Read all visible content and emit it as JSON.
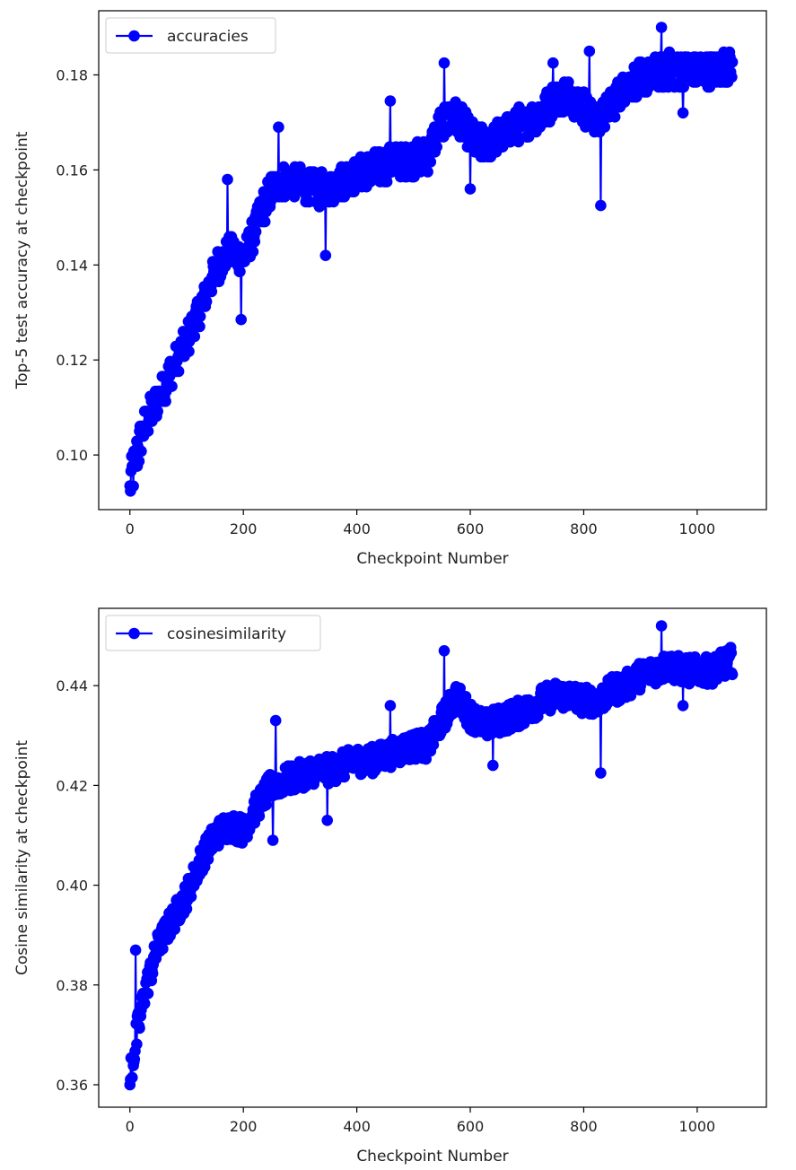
{
  "chart_data": [
    {
      "type": "line",
      "title": "",
      "xlabel": "Checkpoint Number",
      "ylabel": "Top-5 test accuracy at checkpoint",
      "xlim": [
        -55,
        1122
      ],
      "ylim": [
        0.0885,
        0.1935
      ],
      "xticks": [
        0,
        200,
        400,
        600,
        800,
        1000
      ],
      "yticks": [
        0.1,
        0.12,
        0.14,
        0.16,
        0.18
      ],
      "ytick_labels": [
        "0.10",
        "0.12",
        "0.14",
        "0.16",
        "0.18"
      ],
      "grid": false,
      "legend_position": "top-left",
      "series": [
        {
          "name": "accuracies",
          "color": "#0000ff",
          "marker": "circle",
          "x": [
            0,
            25,
            50,
            75,
            100,
            125,
            150,
            175,
            200,
            225,
            250,
            275,
            300,
            325,
            350,
            375,
            400,
            425,
            450,
            475,
            500,
            525,
            550,
            575,
            600,
            625,
            650,
            675,
            700,
            725,
            750,
            775,
            800,
            825,
            850,
            875,
            900,
            925,
            950,
            975,
            1000,
            1025,
            1060
          ],
          "y": [
            0.094,
            0.106,
            0.112,
            0.118,
            0.124,
            0.131,
            0.139,
            0.143,
            0.141,
            0.149,
            0.156,
            0.158,
            0.157,
            0.156,
            0.156,
            0.158,
            0.159,
            0.16,
            0.161,
            0.162,
            0.162,
            0.163,
            0.17,
            0.171,
            0.167,
            0.165,
            0.167,
            0.169,
            0.17,
            0.172,
            0.175,
            0.176,
            0.173,
            0.17,
            0.174,
            0.178,
            0.179,
            0.18,
            0.181,
            0.181,
            0.181,
            0.181,
            0.182
          ],
          "extremes": [
            {
              "x": 0,
              "y": 0.0935
            },
            {
              "x": 172,
              "y": 0.158
            },
            {
              "x": 196,
              "y": 0.1285
            },
            {
              "x": 262,
              "y": 0.169
            },
            {
              "x": 345,
              "y": 0.142
            },
            {
              "x": 459,
              "y": 0.1745
            },
            {
              "x": 554,
              "y": 0.1825
            },
            {
              "x": 600,
              "y": 0.156
            },
            {
              "x": 746,
              "y": 0.1825
            },
            {
              "x": 810,
              "y": 0.185
            },
            {
              "x": 830,
              "y": 0.1525
            },
            {
              "x": 937,
              "y": 0.19
            },
            {
              "x": 975,
              "y": 0.172
            }
          ]
        }
      ]
    },
    {
      "type": "line",
      "title": "",
      "xlabel": "Checkpoint Number",
      "ylabel": "Cosine similarity at checkpoint",
      "xlim": [
        -55,
        1122
      ],
      "ylim": [
        0.3555,
        0.4555
      ],
      "xticks": [
        0,
        200,
        400,
        600,
        800,
        1000
      ],
      "yticks": [
        0.36,
        0.38,
        0.4,
        0.42,
        0.44
      ],
      "ytick_labels": [
        "0.36",
        "0.38",
        "0.40",
        "0.42",
        "0.44"
      ],
      "grid": false,
      "legend_position": "top-left",
      "series": [
        {
          "name": "cosinesimilarity",
          "color": "#0000ff",
          "marker": "circle",
          "x": [
            0,
            25,
            50,
            75,
            100,
            125,
            150,
            175,
            200,
            225,
            250,
            275,
            300,
            325,
            350,
            375,
            400,
            425,
            450,
            475,
            500,
            525,
            550,
            575,
            600,
            625,
            650,
            675,
            700,
            725,
            750,
            775,
            800,
            825,
            850,
            875,
            900,
            925,
            950,
            975,
            1000,
            1025,
            1060
          ],
          "y": [
            0.362,
            0.378,
            0.388,
            0.393,
            0.398,
            0.405,
            0.41,
            0.412,
            0.411,
            0.416,
            0.42,
            0.421,
            0.422,
            0.423,
            0.423,
            0.424,
            0.425,
            0.425,
            0.426,
            0.427,
            0.428,
            0.428,
            0.433,
            0.438,
            0.434,
            0.432,
            0.433,
            0.434,
            0.435,
            0.437,
            0.438,
            0.438,
            0.437,
            0.437,
            0.439,
            0.44,
            0.442,
            0.443,
            0.444,
            0.443,
            0.443,
            0.443,
            0.445
          ],
          "extremes": [
            {
              "x": 0,
              "y": 0.36
            },
            {
              "x": 10,
              "y": 0.387
            },
            {
              "x": 257,
              "y": 0.433
            },
            {
              "x": 252,
              "y": 0.409
            },
            {
              "x": 348,
              "y": 0.413
            },
            {
              "x": 459,
              "y": 0.436
            },
            {
              "x": 554,
              "y": 0.447
            },
            {
              "x": 640,
              "y": 0.424
            },
            {
              "x": 830,
              "y": 0.4225
            },
            {
              "x": 937,
              "y": 0.452
            },
            {
              "x": 975,
              "y": 0.436
            }
          ]
        }
      ]
    }
  ]
}
